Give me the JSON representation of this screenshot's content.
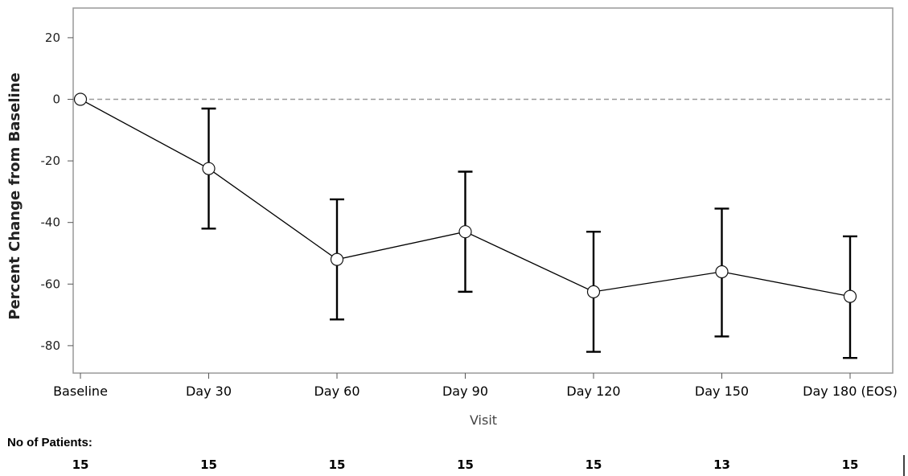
{
  "chart_data": {
    "type": "line",
    "title": "",
    "xlabel": "Visit",
    "ylabel": "Percent Change from Baseline",
    "categories": [
      "Baseline",
      "Day 30",
      "Day 60",
      "Day 90",
      "Day 120",
      "Day 150",
      "Day 180 (EOS)"
    ],
    "series": [
      {
        "values": [
          0,
          -22.5,
          -52,
          -43,
          -62.5,
          -56,
          -64
        ],
        "error_lower": [
          0,
          -42,
          -71.5,
          -62.5,
          -82,
          -77,
          -84
        ],
        "error_upper": [
          0,
          -3,
          -32.5,
          -23.5,
          -43,
          -35.5,
          -44.5
        ]
      }
    ],
    "yticks": [
      20,
      0,
      -20,
      -40,
      -60,
      -80
    ],
    "ylim": [
      -89,
      29
    ],
    "reference_line": 0,
    "grid": false,
    "marker": "open-circle",
    "line_color": "#000000",
    "reference_line_color": "#999999",
    "frame_color": "#999999",
    "patients_label": "No of Patients:",
    "patients": [
      "15",
      "15",
      "15",
      "15",
      "15",
      "13",
      "15"
    ]
  }
}
